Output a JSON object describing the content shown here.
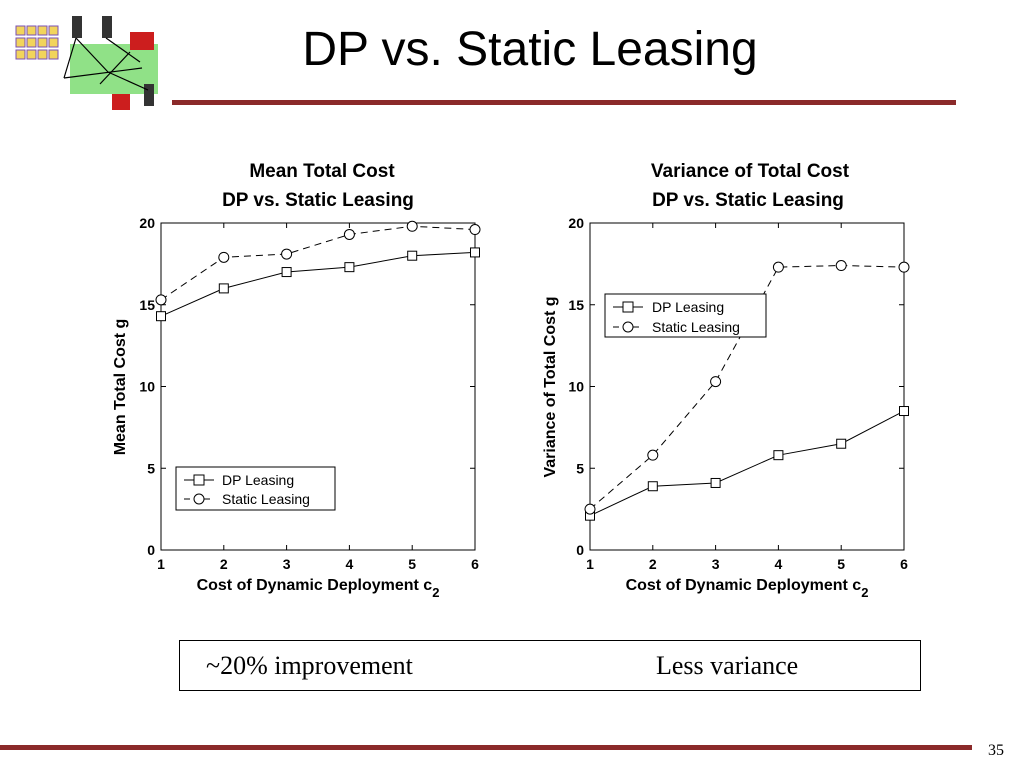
{
  "slide": {
    "title": "DP vs. Static Leasing",
    "page_number": "35"
  },
  "callout": {
    "left_text": "~20% improvement",
    "right_text": "Less variance"
  },
  "colors": {
    "accent_rule": "#8b2a2a"
  },
  "chart_data": [
    {
      "type": "line",
      "title": "Mean Total Cost",
      "subtitle": "DP vs. Static Leasing",
      "xlabel": "Cost of Dynamic Deployment c",
      "xlabel_subscript": "2",
      "ylabel": "Mean Total Cost g",
      "x": [
        1,
        2,
        3,
        4,
        5,
        6
      ],
      "xlim": [
        1,
        6
      ],
      "ylim": [
        0,
        20
      ],
      "xticks": [
        1,
        2,
        3,
        4,
        5,
        6
      ],
      "yticks": [
        0,
        5,
        10,
        15,
        20
      ],
      "grid": false,
      "legend_position": "bottom-left",
      "series": [
        {
          "name": "DP Leasing",
          "marker": "square",
          "line": "solid",
          "values": [
            14.3,
            16.0,
            17.0,
            17.3,
            18.0,
            18.2
          ]
        },
        {
          "name": "Static Leasing",
          "marker": "circle",
          "line": "dashed",
          "values": [
            15.3,
            17.9,
            18.1,
            19.3,
            19.8,
            19.6
          ]
        }
      ]
    },
    {
      "type": "line",
      "title": "Variance of Total Cost",
      "subtitle": "DP vs. Static Leasing",
      "xlabel": "Cost of Dynamic Deployment c",
      "xlabel_subscript": "2",
      "ylabel": "Variance of Total Cost g",
      "x": [
        1,
        2,
        3,
        4,
        5,
        6
      ],
      "xlim": [
        1,
        6
      ],
      "ylim": [
        0,
        20
      ],
      "xticks": [
        1,
        2,
        3,
        4,
        5,
        6
      ],
      "yticks": [
        0,
        5,
        10,
        15,
        20
      ],
      "grid": false,
      "legend_position": "top-left",
      "series": [
        {
          "name": "DP Leasing",
          "marker": "square",
          "line": "solid",
          "values": [
            2.1,
            3.9,
            4.1,
            5.8,
            6.5,
            8.5
          ]
        },
        {
          "name": "Static Leasing",
          "marker": "circle",
          "line": "dashed",
          "values": [
            2.5,
            5.8,
            10.3,
            17.3,
            17.4,
            17.3
          ]
        }
      ]
    }
  ]
}
